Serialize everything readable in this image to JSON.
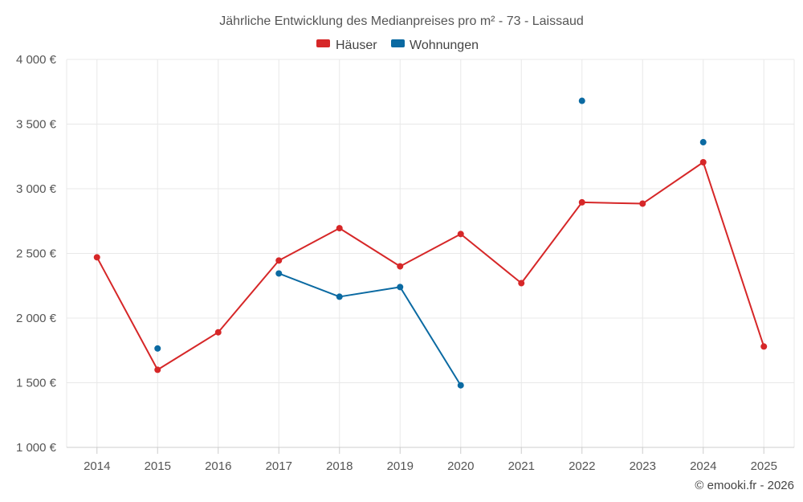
{
  "chart_data": {
    "type": "line",
    "title": "Jährliche Entwicklung des Medianpreises pro m² - 73 - Laissaud",
    "categories": [
      "2014",
      "2015",
      "2016",
      "2017",
      "2018",
      "2019",
      "2020",
      "2021",
      "2022",
      "2023",
      "2024",
      "2025"
    ],
    "ylim": [
      1000,
      4000
    ],
    "yticks": [
      1000,
      1500,
      2000,
      2500,
      3000,
      3500,
      4000
    ],
    "ytick_labels": [
      "1 000 €",
      "1 500 €",
      "2 000 €",
      "2 500 €",
      "3 000 €",
      "3 500 €",
      "4 000 €"
    ],
    "grid": true,
    "legend_position": "top-center",
    "series": [
      {
        "name": "Häuser",
        "color": "#d62728",
        "values": [
          2470,
          1600,
          1890,
          2445,
          2695,
          2400,
          2650,
          2270,
          2895,
          2885,
          3205,
          1780
        ]
      },
      {
        "name": "Wohnungen",
        "color": "#0b6aa2",
        "values": [
          null,
          1765,
          null,
          2345,
          2165,
          2240,
          1480,
          null,
          3680,
          null,
          3360,
          null
        ]
      }
    ]
  },
  "credit": "© emooki.fr - 2026"
}
